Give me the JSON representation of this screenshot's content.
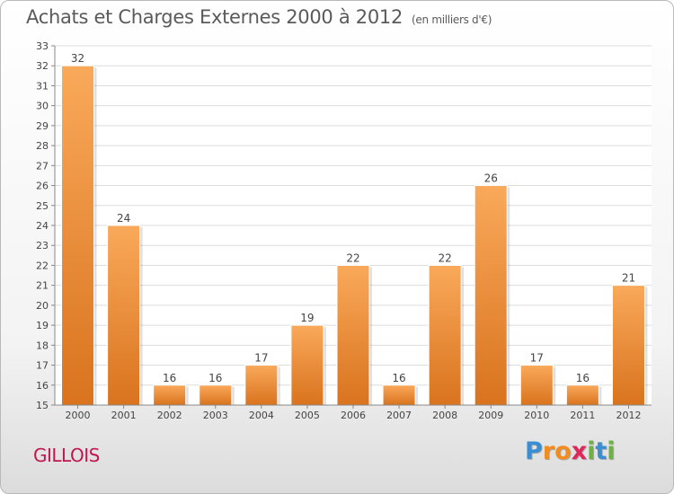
{
  "header": {
    "title": "Achats et Charges Externes 2000 à 2012",
    "subtitle": "(en milliers d'€)"
  },
  "commune": "GILLOIS",
  "logo": {
    "text": "Proxiti",
    "letters": [
      {
        "ch": "P",
        "color": "#3a8fd4"
      },
      {
        "ch": "r",
        "color": "#f28c1e"
      },
      {
        "ch": "o",
        "color": "#f28c1e"
      },
      {
        "ch": "x",
        "color": "#e0275a"
      },
      {
        "ch": "i",
        "color": "#6db33f"
      },
      {
        "ch": "t",
        "color": "#3a8fd4"
      },
      {
        "ch": "i",
        "color": "#6db33f"
      }
    ]
  },
  "chart_data": {
    "type": "bar",
    "title": "Achats et Charges Externes 2000 à 2012",
    "subtitle": "(en milliers d'€)",
    "categories": [
      "2000",
      "2001",
      "2002",
      "2003",
      "2004",
      "2005",
      "2006",
      "2007",
      "2008",
      "2009",
      "2010",
      "2011",
      "2012"
    ],
    "values": [
      32,
      24,
      16,
      16,
      17,
      19,
      22,
      16,
      22,
      26,
      17,
      16,
      21
    ],
    "ylim": [
      15,
      33
    ],
    "yticks": [
      15,
      16,
      17,
      18,
      19,
      20,
      21,
      22,
      23,
      24,
      25,
      26,
      27,
      28,
      29,
      30,
      31,
      32,
      33
    ],
    "grid": true,
    "legend": "none",
    "bar_color_top": "#f9a95a",
    "bar_color_bottom": "#d9731e"
  }
}
